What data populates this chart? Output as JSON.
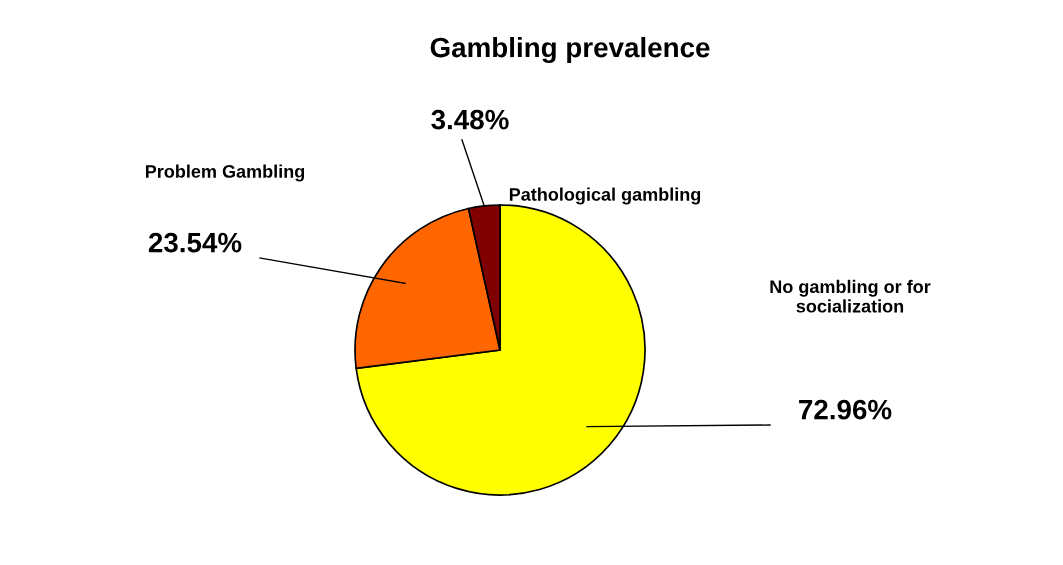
{
  "chart_data": {
    "type": "pie",
    "title": "Gambling prevalence",
    "categories": [
      "No gambling or for\nsocialization",
      "Problem Gambling",
      "Pathological gambling"
    ],
    "values": [
      72.96,
      23.54,
      3.48
    ],
    "value_labels": [
      "72.96%",
      "23.54%",
      "3.48%"
    ],
    "colors": [
      "#ffff00",
      "#ff6600",
      "#800000"
    ]
  }
}
